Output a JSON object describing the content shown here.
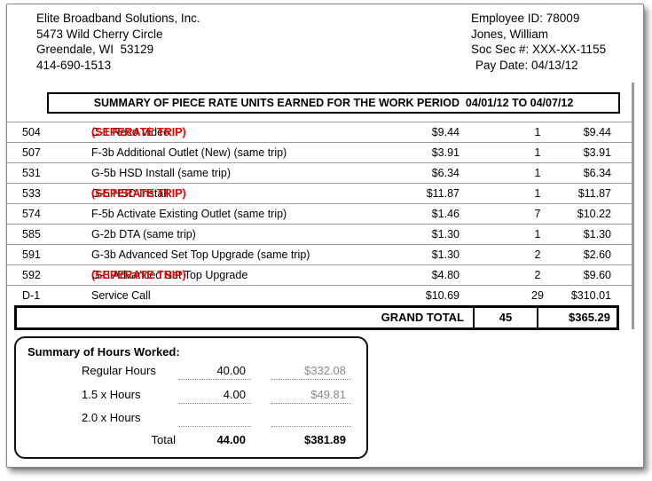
{
  "company": {
    "name": "Elite Broadband Solutions, Inc.",
    "address_line1": "5473 Wild Cherry Circle",
    "address_line2": "Greendale, WI  53129",
    "phone": "414-690-1513"
  },
  "employee": {
    "id": "Employee ID: 78009",
    "name": "Jones, William",
    "ssn": "Soc Sec #: XXX-XX-1155",
    "pay_date": "Pay Date: 04/13/12"
  },
  "summary_table": {
    "title": "SUMMARY OF PIECE RATE UNITS EARNED FOR THE WORK PERIOD  04/01/12 TO 04/07/12",
    "rows": [
      {
        "code": "504",
        "desc": "C-1 Reco Video ",
        "desc_red": "(SEPERATE TRIP)",
        "rate": "$9.44",
        "qty": "1",
        "amount": "$9.44"
      },
      {
        "code": "507",
        "desc": "F-3b Additional Outlet (New) (same trip)",
        "desc_red": "",
        "rate": "$3.91",
        "qty": "1",
        "amount": "$3.91"
      },
      {
        "code": "531",
        "desc": "G-5b HSD Install (same trip)",
        "desc_red": "",
        "rate": "$6.34",
        "qty": "1",
        "amount": "$6.34"
      },
      {
        "code": "533",
        "desc": "G-5 HSD Install ",
        "desc_red": "(SEPERATE TRIP)",
        "rate": "$11.87",
        "qty": "1",
        "amount": "$11.87"
      },
      {
        "code": "574",
        "desc": "F-5b Activate Existing Outlet (same trip)",
        "desc_red": "",
        "rate": "$1.46",
        "qty": "7",
        "amount": "$10.22"
      },
      {
        "code": "585",
        "desc": "G-2b DTA (same trip)",
        "desc_red": "",
        "rate": "$1.30",
        "qty": "1",
        "amount": "$1.30"
      },
      {
        "code": "591",
        "desc": "G-3b Advanced Set Top Upgrade (same trip)",
        "desc_red": "",
        "rate": "$1.30",
        "qty": "2",
        "amount": "$2.60"
      },
      {
        "code": "592",
        "desc": "G-3 Advanced Set Top Upgrade ",
        "desc_red": "(SEPERATE TRIP)",
        "rate": "$4.80",
        "qty": "2",
        "amount": "$9.60"
      },
      {
        "code": "D-1",
        "desc": "Service Call",
        "desc_red": "",
        "rate": "$10.69",
        "qty": "29",
        "amount": "$310.01"
      }
    ],
    "grand_total": {
      "label": "GRAND TOTAL",
      "qty": "45",
      "amount": "$365.29"
    }
  },
  "hours_summary": {
    "title": "Summary of Hours Worked:",
    "rows": [
      {
        "label": "Regular Hours",
        "hours": "40.00",
        "amount": "$332.08"
      },
      {
        "label": "1.5 x Hours",
        "hours": "4.00",
        "amount": "$49.81"
      },
      {
        "label": "2.0 x Hours",
        "hours": "",
        "amount": ""
      }
    ],
    "total": {
      "label": "Total",
      "hours": "44.00",
      "amount": "$381.89"
    }
  },
  "colors": {
    "highlight_red": "#ee0000",
    "muted_gray": "#8a8a8a"
  }
}
